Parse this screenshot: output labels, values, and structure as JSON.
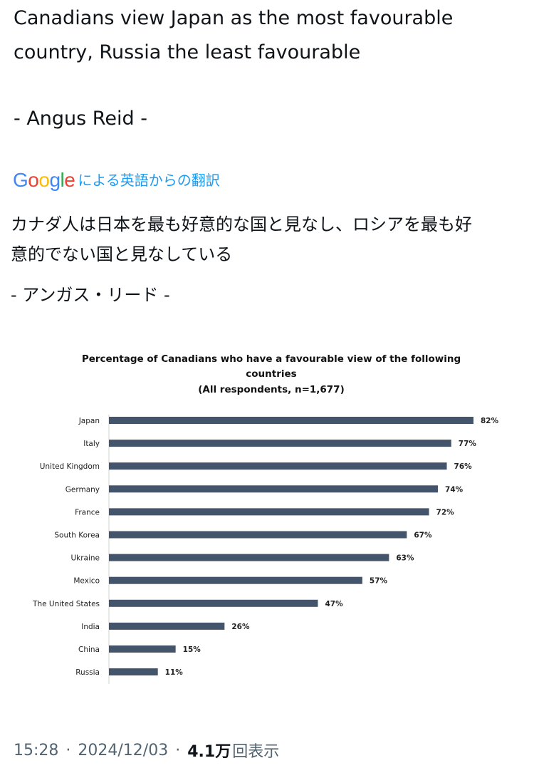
{
  "post": {
    "text_lines": [
      "Canadians view Japan as the most favourable",
      "country, Russia the least favourable"
    ],
    "author_line": "- Angus Reid -"
  },
  "translation": {
    "logo_letters": [
      "G",
      "o",
      "o",
      "g",
      "l",
      "e"
    ],
    "label": "による英語からの翻訳",
    "text_lines": [
      "カナダ人は日本を最も好意的な国と見なし、ロシアを最も好",
      "意的でない国と見なしている"
    ],
    "author_line": "- アンガス・リード -"
  },
  "chart_data": {
    "type": "bar",
    "orientation": "horizontal",
    "title_lines": [
      "Percentage of Canadians who have a favourable view of the following",
      "countries",
      "(All respondents, n=1,677)"
    ],
    "categories": [
      "Japan",
      "Italy",
      "United Kingdom",
      "Germany",
      "France",
      "South Korea",
      "Ukraine",
      "Mexico",
      "The United States",
      "India",
      "China",
      "Russia"
    ],
    "values": [
      82,
      77,
      76,
      74,
      72,
      67,
      63,
      57,
      47,
      26,
      15,
      11
    ],
    "value_labels": [
      "82%",
      "77%",
      "76%",
      "74%",
      "72%",
      "67%",
      "63%",
      "57%",
      "47%",
      "26%",
      "15%",
      "11%"
    ],
    "bar_color": "#44546a",
    "xlim": [
      0,
      100
    ],
    "grid": false
  },
  "footer": {
    "time": "15:28",
    "separator": "·",
    "date": "2024/12/03",
    "views_count": "4.1万",
    "views_label": "回表示"
  },
  "colors": {
    "text": "#0f1419",
    "link": "#1d9bf0",
    "muted": "#536471"
  }
}
